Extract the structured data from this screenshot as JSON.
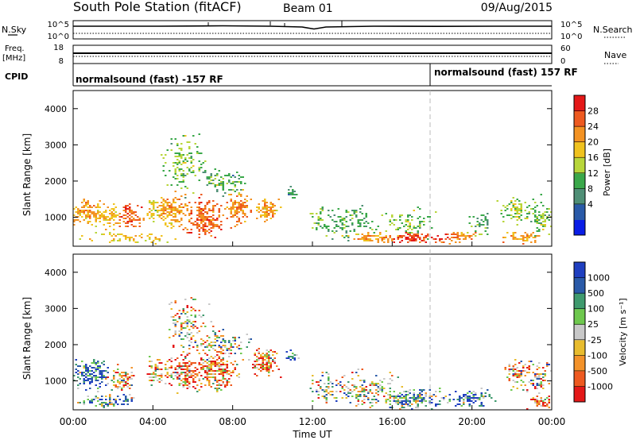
{
  "header": {
    "station": "South Pole Station (fitACF)",
    "beam": "Beam 01",
    "date": "09/Aug/2015"
  },
  "panels": {
    "nsky_label": "N.Sky",
    "nsky_ticks": [
      "10^5",
      "10^0"
    ],
    "nsearch_label": "N.Search",
    "nsearch_ticks": [
      "10^5",
      "10^0"
    ],
    "freq_label_1": "Freq.",
    "freq_label_2": "[MHz]",
    "freq_ticks": [
      "18",
      "8"
    ],
    "nave_label": "Nave",
    "nave_ticks": [
      "60",
      "0"
    ],
    "cpid_label": "CPID",
    "cpid_segments": [
      "normalsound (fast) -157 RF",
      "normalsound (fast) 157 RF"
    ]
  },
  "colors": {
    "power_scale": [
      "#0a1de6",
      "#2a5aa8",
      "#4f8f76",
      "#3aa84a",
      "#b8d63a",
      "#f0c21e",
      "#f39222",
      "#ee5a20",
      "#e41818"
    ],
    "velocity_scale": [
      "#e41818",
      "#ee5a20",
      "#f3922a",
      "#e8bc2e",
      "#c8c8c8",
      "#6ec84e",
      "#3f9a6e",
      "#2a5aa8",
      "#1f3fc0"
    ]
  },
  "chart_data": [
    {
      "type": "heatmap",
      "name": "power",
      "ylabel": "Slant Range [km]",
      "yticks": [
        "4000",
        "3000",
        "2000",
        "1000"
      ],
      "ylim": [
        200,
        4500
      ],
      "xlim": [
        "00:00",
        "24:00"
      ],
      "colorbar_label": "Power [dB]",
      "colorbar_ticks": [
        "28",
        "24",
        "20",
        "16",
        "12",
        "8",
        "4"
      ],
      "colorbar_range": [
        0,
        32
      ],
      "blobs": [
        {
          "t": 0.6,
          "r": 1150,
          "dt": 0.8,
          "dr": 320,
          "v": 22,
          "d": 0.85
        },
        {
          "t": 1.8,
          "r": 1000,
          "dt": 0.6,
          "dr": 280,
          "v": 20,
          "d": 0.75
        },
        {
          "t": 2.8,
          "r": 1050,
          "dt": 0.6,
          "dr": 300,
          "v": 26,
          "d": 0.8
        },
        {
          "t": 4.1,
          "r": 1250,
          "dt": 0.35,
          "dr": 350,
          "v": 18,
          "d": 0.7
        },
        {
          "t": 5.0,
          "r": 1150,
          "dt": 0.7,
          "dr": 420,
          "v": 22,
          "d": 0.85
        },
        {
          "t": 6.6,
          "r": 950,
          "dt": 0.8,
          "dr": 500,
          "v": 26,
          "d": 0.9
        },
        {
          "t": 8.3,
          "r": 1250,
          "dt": 0.6,
          "dr": 420,
          "v": 24,
          "d": 0.8
        },
        {
          "t": 9.7,
          "r": 1200,
          "dt": 0.6,
          "dr": 300,
          "v": 22,
          "d": 0.8
        },
        {
          "t": 11.0,
          "r": 1650,
          "dt": 0.25,
          "dr": 150,
          "v": 10,
          "d": 0.8
        },
        {
          "t": 5.6,
          "r": 2500,
          "dt": 1.0,
          "dr": 700,
          "v": 14,
          "d": 0.35
        },
        {
          "t": 7.5,
          "r": 2000,
          "dt": 1.2,
          "dr": 300,
          "v": 12,
          "d": 0.45
        },
        {
          "t": 12.3,
          "r": 900,
          "dt": 0.3,
          "dr": 380,
          "v": 14,
          "d": 0.45
        },
        {
          "t": 14.0,
          "r": 850,
          "dt": 1.4,
          "dr": 450,
          "v": 12,
          "d": 0.35
        },
        {
          "t": 16.8,
          "r": 850,
          "dt": 1.2,
          "dr": 350,
          "v": 14,
          "d": 0.35
        },
        {
          "t": 20.4,
          "r": 800,
          "dt": 0.6,
          "dr": 300,
          "v": 12,
          "d": 0.4
        },
        {
          "t": 22.2,
          "r": 1200,
          "dt": 0.7,
          "dr": 350,
          "v": 16,
          "d": 0.55
        },
        {
          "t": 23.4,
          "r": 1000,
          "dt": 0.5,
          "dr": 500,
          "v": 14,
          "d": 0.55
        },
        {
          "t": 3.0,
          "r": 420,
          "dt": 2.0,
          "dr": 150,
          "v": 20,
          "d": 0.35
        },
        {
          "t": 15.0,
          "r": 430,
          "dt": 1.3,
          "dr": 120,
          "v": 22,
          "d": 0.9
        },
        {
          "t": 17.2,
          "r": 430,
          "dt": 1.4,
          "dr": 120,
          "v": 28,
          "d": 0.95
        },
        {
          "t": 19.3,
          "r": 470,
          "dt": 0.7,
          "dr": 150,
          "v": 24,
          "d": 0.75
        },
        {
          "t": 22.6,
          "r": 450,
          "dt": 0.9,
          "dr": 150,
          "v": 22,
          "d": 0.7
        }
      ]
    },
    {
      "type": "heatmap",
      "name": "velocity",
      "ylabel": "Slant Range [km]",
      "yticks": [
        "4000",
        "3000",
        "2000",
        "1000"
      ],
      "ylim": [
        200,
        4500
      ],
      "xlabel": "Time UT",
      "xticks": [
        "00:00",
        "04:00",
        "08:00",
        "12:00",
        "16:00",
        "20:00",
        "00:00"
      ],
      "xlim": [
        "00:00",
        "24:00"
      ],
      "colorbar_label": "Velocity [m s⁻¹]",
      "colorbar_ticks": [
        "1000",
        "500",
        "100",
        "25",
        "-25",
        "-100",
        "-500",
        "-1000"
      ],
      "blobs": [
        {
          "t": 0.9,
          "r": 1200,
          "dt": 0.9,
          "dr": 380,
          "v": 7.5,
          "d": 0.85
        },
        {
          "t": 2.4,
          "r": 1050,
          "dt": 0.7,
          "dr": 300,
          "v": 2.3,
          "d": 0.8
        },
        {
          "t": 4.1,
          "r": 1300,
          "dt": 0.35,
          "dr": 350,
          "v": 2.5,
          "d": 0.7
        },
        {
          "t": 5.5,
          "r": 1250,
          "dt": 0.9,
          "dr": 420,
          "v": 2.2,
          "d": 0.85
        },
        {
          "t": 7.2,
          "r": 1300,
          "dt": 1.0,
          "dr": 500,
          "v": 1.8,
          "d": 0.9
        },
        {
          "t": 9.6,
          "r": 1500,
          "dt": 0.7,
          "dr": 350,
          "v": 1.8,
          "d": 0.85
        },
        {
          "t": 11.0,
          "r": 1700,
          "dt": 0.3,
          "dr": 160,
          "v": 7.2,
          "d": 0.75
        },
        {
          "t": 5.7,
          "r": 2500,
          "dt": 1.0,
          "dr": 700,
          "v": 3.5,
          "d": 0.35
        },
        {
          "t": 7.6,
          "r": 2050,
          "dt": 1.3,
          "dr": 300,
          "v": 4.5,
          "d": 0.45
        },
        {
          "t": 12.6,
          "r": 800,
          "dt": 0.6,
          "dr": 400,
          "v": 4.6,
          "d": 0.45
        },
        {
          "t": 14.6,
          "r": 750,
          "dt": 1.6,
          "dr": 450,
          "v": 4.0,
          "d": 0.4
        },
        {
          "t": 17.0,
          "r": 500,
          "dt": 1.6,
          "dr": 250,
          "v": 5.5,
          "d": 0.8
        },
        {
          "t": 20.0,
          "r": 500,
          "dt": 1.0,
          "dr": 250,
          "v": 6.5,
          "d": 0.7
        },
        {
          "t": 22.3,
          "r": 1250,
          "dt": 0.6,
          "dr": 400,
          "v": 2.8,
          "d": 0.55
        },
        {
          "t": 23.4,
          "r": 1100,
          "dt": 0.5,
          "dr": 500,
          "v": 4.2,
          "d": 0.5
        },
        {
          "t": 1.8,
          "r": 450,
          "dt": 1.5,
          "dr": 200,
          "v": 6.0,
          "d": 0.5
        },
        {
          "t": 23.4,
          "r": 420,
          "dt": 0.5,
          "dr": 200,
          "v": 1.5,
          "d": 0.8
        }
      ]
    }
  ]
}
